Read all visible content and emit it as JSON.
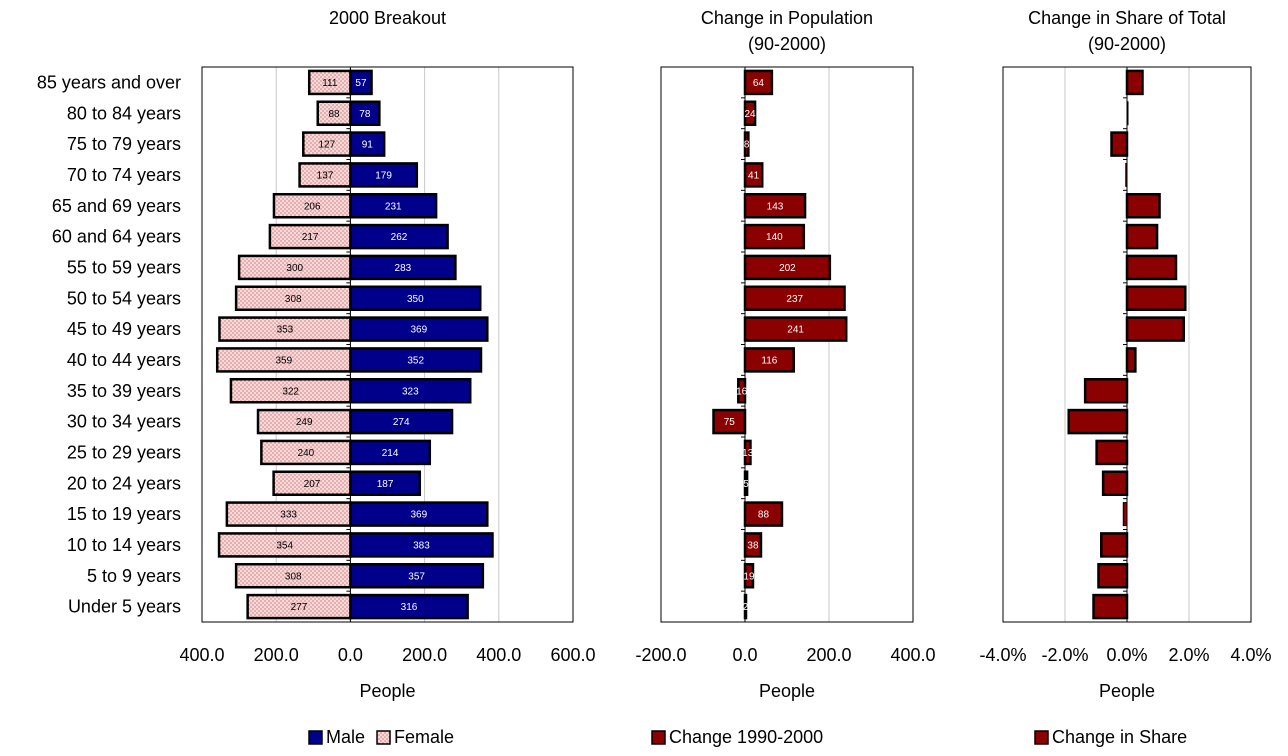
{
  "chart_data": [
    {
      "type": "bar",
      "orientation": "horizontal",
      "title": "2000 Breakout",
      "xlabel": "People",
      "xlim": [
        -400,
        600
      ],
      "x_ticks": [
        -400,
        -200,
        0,
        200,
        400,
        600
      ],
      "x_tick_labels": [
        "400.0",
        "200.0",
        "0.0",
        "200.0",
        "400.0",
        "600.0"
      ],
      "grid": "vertical",
      "legend_position": "bottom",
      "categories": [
        "85 years and over",
        "80 to 84 years",
        "75 to 79 years",
        "70 to 74 years",
        "65 and 69 years",
        "60 and 64 years",
        "55 to 59 years",
        "50 to 54 years",
        "45 to 49 years",
        "40 to 44 years",
        "35 to 39 years",
        "30 to 34 years",
        "25 to 29 years",
        "20 to 24 years",
        "15 to 19 years",
        "10 to 14 years",
        "5 to 9 years",
        "Under 5 years"
      ],
      "series": [
        {
          "name": "Male",
          "color": "#00008b",
          "values": [
            57,
            78,
            91,
            179,
            231,
            262,
            283,
            350,
            369,
            352,
            323,
            274,
            214,
            187,
            369,
            383,
            357,
            316
          ]
        },
        {
          "name": "Female",
          "color": "#f6dada",
          "pattern": "dotted",
          "values": [
            111,
            88,
            127,
            137,
            206,
            217,
            300,
            308,
            353,
            359,
            322,
            249,
            240,
            207,
            333,
            354,
            308,
            277
          ]
        }
      ]
    },
    {
      "type": "bar",
      "orientation": "horizontal",
      "title": "Change in Population",
      "subtitle": "(90-2000)",
      "xlabel": "People",
      "xlim": [
        -200,
        400
      ],
      "x_ticks": [
        -200,
        0,
        200,
        400
      ],
      "x_tick_labels": [
        "-200.0",
        "0.0",
        "200.0",
        "400.0"
      ],
      "grid": "vertical",
      "legend_position": "bottom",
      "series": [
        {
          "name": "Change 1990-2000",
          "color": "#8b0000",
          "values": [
            64,
            24,
            8,
            41,
            143,
            140,
            202,
            237,
            241,
            116,
            -16,
            -75,
            13,
            5,
            88,
            38,
            19,
            2
          ],
          "labels": [
            "64",
            "24",
            "8",
            "41",
            "143",
            "140",
            "202",
            "237",
            "241",
            "116",
            "16",
            "75",
            "13",
            "5",
            "88",
            "38",
            "19",
            "2"
          ]
        }
      ]
    },
    {
      "type": "bar",
      "orientation": "horizontal",
      "title": "Change in Share of Total",
      "subtitle": "(90-2000)",
      "xlabel": "People",
      "xlim": [
        -4,
        4
      ],
      "x_ticks": [
        -4,
        -2,
        0,
        2,
        4
      ],
      "x_tick_labels": [
        "-4.0%",
        "-2.0%",
        "0.0%",
        "2.0%",
        "4.0%"
      ],
      "grid": "vertical",
      "legend_position": "bottom",
      "series": [
        {
          "name": "Change in Share",
          "color": "#8b0000",
          "values": [
            0.5,
            0.03,
            -0.5,
            -0.04,
            1.05,
            0.97,
            1.58,
            1.88,
            1.83,
            0.27,
            -1.35,
            -1.88,
            -0.98,
            -0.77,
            -0.12,
            -0.83,
            -0.92,
            -1.08
          ]
        }
      ]
    }
  ]
}
